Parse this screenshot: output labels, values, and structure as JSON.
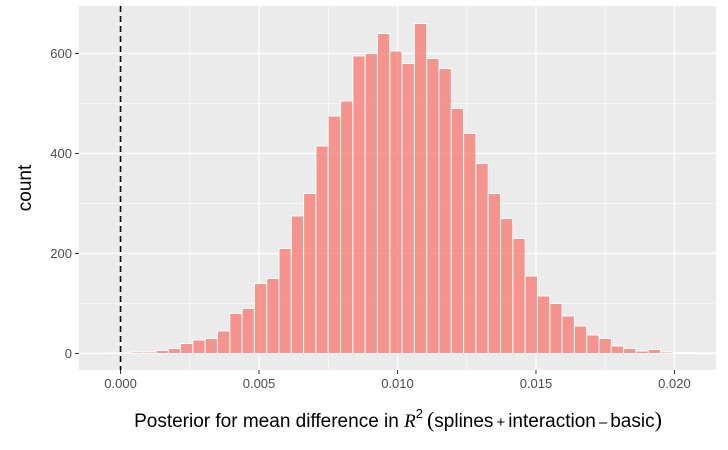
{
  "chart_data": {
    "type": "histogram",
    "title": "",
    "ylabel": "count",
    "xlabel": {
      "prefix": "Posterior for mean difference in ",
      "symbol": "R",
      "superscript": "2",
      "open_paren": "(",
      "term1": "splines",
      "plus": "+",
      "term2": "interaction",
      "minus": "–",
      "term3": "basic",
      "close_paren": ")"
    },
    "x_ticks": [
      {
        "value": 0.0,
        "label": "0.000"
      },
      {
        "value": 0.005,
        "label": "0.005"
      },
      {
        "value": 0.01,
        "label": "0.010"
      },
      {
        "value": 0.015,
        "label": "0.015"
      },
      {
        "value": 0.02,
        "label": "0.020"
      }
    ],
    "y_ticks": [
      {
        "value": 0,
        "label": "0"
      },
      {
        "value": 200,
        "label": "200"
      },
      {
        "value": 400,
        "label": "400"
      },
      {
        "value": 600,
        "label": "600"
      }
    ],
    "xlim": [
      -0.0015,
      0.0215
    ],
    "ylim": [
      -33,
      695
    ],
    "bin_start": -0.0005,
    "bin_width": 0.0004444,
    "counts": [
      1,
      2,
      3,
      3,
      6,
      10,
      20,
      27,
      30,
      45,
      80,
      90,
      140,
      150,
      210,
      275,
      320,
      415,
      475,
      505,
      595,
      600,
      640,
      605,
      580,
      660,
      590,
      570,
      490,
      440,
      380,
      320,
      270,
      230,
      155,
      115,
      100,
      75,
      55,
      37,
      30,
      15,
      10,
      5,
      8,
      3,
      2,
      2,
      1,
      1,
      1,
      1,
      1,
      1
    ],
    "fill_color": "#f8766d",
    "bar_outline": "#ffffff",
    "bar_alpha": 0.75,
    "reference_line": {
      "x": 0.0,
      "style": "dashed",
      "color": "#000000"
    },
    "panel_background": "#ebebeb",
    "grid": true,
    "grid_color": "#ffffff",
    "legend": "none"
  }
}
